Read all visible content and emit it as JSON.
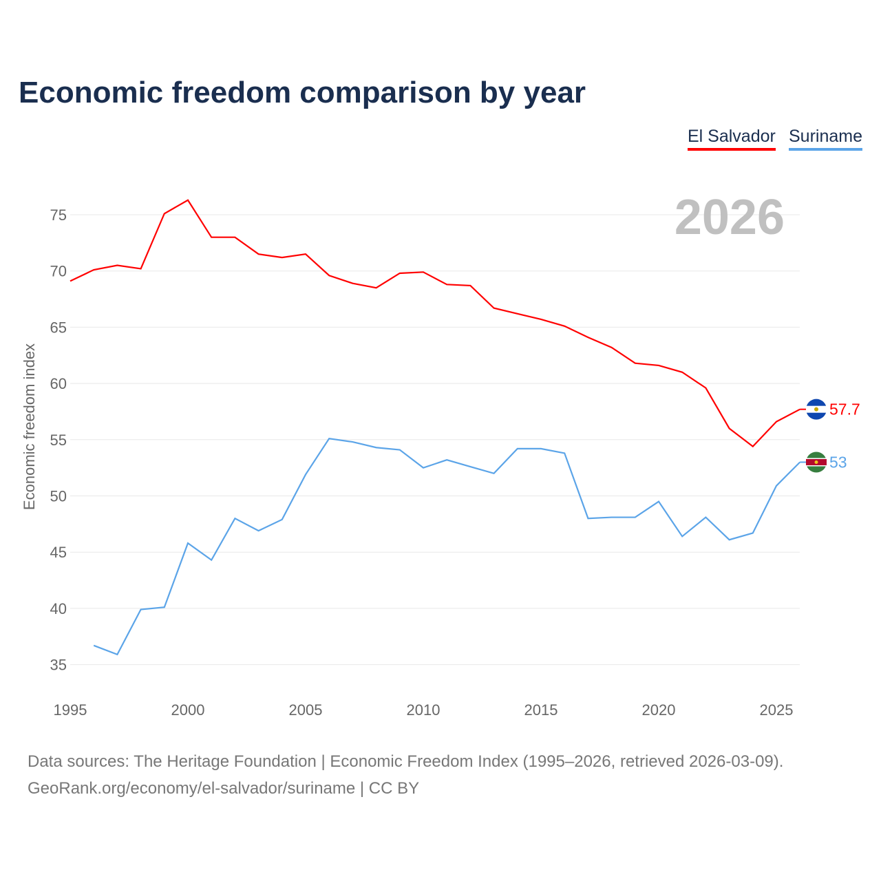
{
  "title": "Economic freedom comparison by year",
  "source_line1": "Data sources: The Heritage Foundation | Economic Freedom Index (1995–2026, retrieved 2026-03-09).",
  "source_line2": "GeoRank.org/economy/el-salvador/suriname | CC BY",
  "chart_data": {
    "type": "line",
    "title": "Economic freedom comparison by year",
    "xlabel": "",
    "ylabel": "Economic freedom index",
    "year_label": "2026",
    "xlim": [
      1995,
      2026
    ],
    "ylim": [
      33,
      77
    ],
    "xticks": [
      1995,
      2000,
      2005,
      2010,
      2015,
      2020,
      2025
    ],
    "yticks": [
      35,
      40,
      45,
      50,
      55,
      60,
      65,
      70,
      75
    ],
    "grid": true,
    "legend_position": "top-right",
    "series": [
      {
        "name": "El Salvador",
        "color": "#ff0000",
        "end_label": "57.7",
        "x": [
          1995,
          1996,
          1997,
          1998,
          1999,
          2000,
          2001,
          2002,
          2003,
          2004,
          2005,
          2006,
          2007,
          2008,
          2009,
          2010,
          2011,
          2012,
          2013,
          2014,
          2015,
          2016,
          2017,
          2018,
          2019,
          2020,
          2021,
          2022,
          2023,
          2024,
          2025,
          2026
        ],
        "values": [
          69.1,
          70.1,
          70.5,
          70.2,
          75.1,
          76.3,
          73.0,
          73.0,
          71.5,
          71.2,
          71.5,
          69.6,
          68.9,
          68.5,
          69.8,
          69.9,
          68.8,
          68.7,
          66.7,
          66.2,
          65.7,
          65.1,
          64.1,
          63.2,
          61.8,
          61.6,
          61.0,
          59.6,
          56.0,
          54.4,
          56.6,
          57.7
        ]
      },
      {
        "name": "Suriname",
        "color": "#5ba4e8",
        "end_label": "53",
        "x": [
          1996,
          1997,
          1998,
          1999,
          2000,
          2001,
          2002,
          2003,
          2004,
          2005,
          2006,
          2007,
          2008,
          2009,
          2010,
          2011,
          2012,
          2013,
          2014,
          2015,
          2016,
          2017,
          2018,
          2019,
          2020,
          2021,
          2022,
          2023,
          2024,
          2025,
          2026
        ],
        "values": [
          36.7,
          35.9,
          39.9,
          40.1,
          45.8,
          44.3,
          48.0,
          46.9,
          47.9,
          51.9,
          55.1,
          54.8,
          54.3,
          54.1,
          52.5,
          53.2,
          52.6,
          52.0,
          54.2,
          54.2,
          53.8,
          48.0,
          48.1,
          48.1,
          49.5,
          46.4,
          48.1,
          46.1,
          46.7,
          50.9,
          53.0
        ]
      }
    ]
  }
}
